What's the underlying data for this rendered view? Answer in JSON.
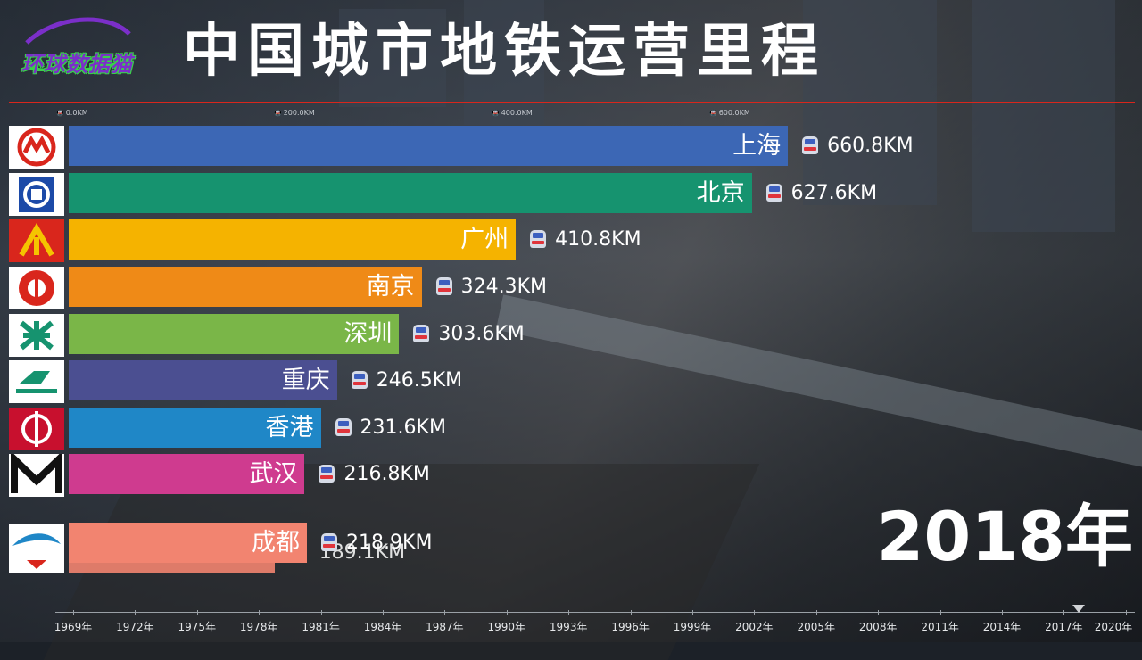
{
  "logo": {
    "text": "环球数据猫"
  },
  "title": "中国城市地铁运营里程",
  "year": "2018年",
  "axis_ticks_top": [
    "0.0KM",
    "200.0KM",
    "400.0KM",
    "600.0KM"
  ],
  "timeline_labels": [
    "1969年",
    "1972年",
    "1975年",
    "1978年",
    "1981年",
    "1984年",
    "1987年",
    "1990年",
    "1993年",
    "1996年",
    "1999年",
    "2002年",
    "2005年",
    "2008年",
    "2011年",
    "2014年",
    "2017年",
    "2020年"
  ],
  "chart_data": {
    "type": "bar",
    "orientation": "horizontal",
    "title": "中国城市地铁运营里程",
    "period": "2018年",
    "unit": "KM",
    "xlim": [
      0,
      800
    ],
    "categories": [
      "上海",
      "北京",
      "广州",
      "南京",
      "深圳",
      "重庆",
      "香港",
      "武汉",
      "成都"
    ],
    "values": [
      660.8,
      627.6,
      410.8,
      324.3,
      303.6,
      246.5,
      231.6,
      216.8,
      218.9
    ],
    "value_labels": [
      "660.8KM",
      "627.6KM",
      "410.8KM",
      "324.3KM",
      "303.6KM",
      "246.5KM",
      "231.6KM",
      "216.8KM",
      "218.9KM"
    ],
    "colors": [
      "#3c67b5",
      "#16936f",
      "#f5b300",
      "#ef8a17",
      "#7ab648",
      "#4b4f91",
      "#1f87c7",
      "#cf3b8f",
      "#f28470"
    ],
    "entering_bar": {
      "value": 189.1,
      "label": "189.1KM",
      "color": "#f28470"
    }
  }
}
